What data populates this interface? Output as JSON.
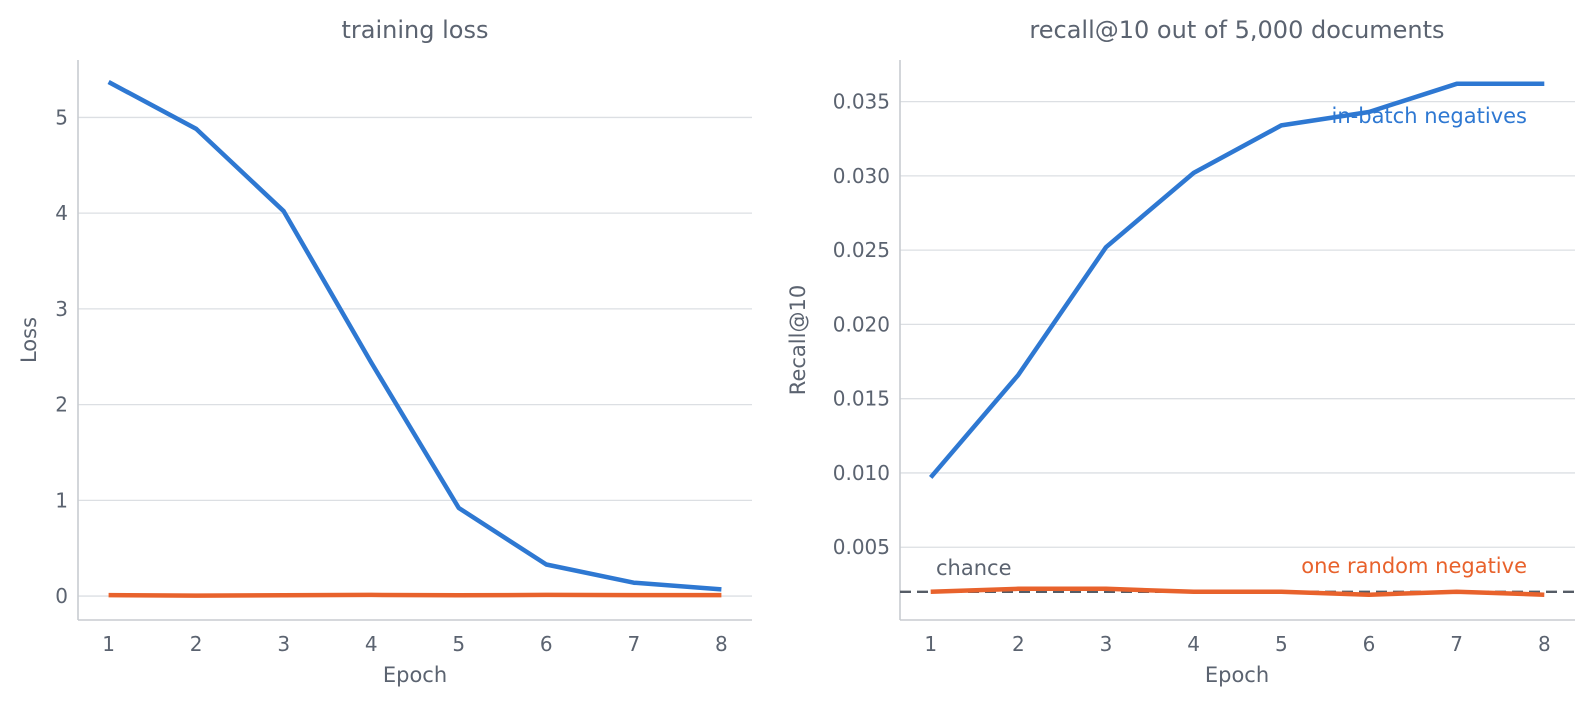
{
  "colors": {
    "series_a": "#2e78d2",
    "series_b": "#e8622c",
    "chance": "#555c66",
    "text": "#5b6370"
  },
  "chart_data": [
    {
      "type": "line",
      "title": "training loss",
      "xlabel": "Epoch",
      "ylabel": "Loss",
      "x": [
        1,
        2,
        3,
        4,
        5,
        6,
        7,
        8
      ],
      "xlim": [
        0.65,
        8.35
      ],
      "ylim": [
        -0.25,
        5.6
      ],
      "xticks": [
        "1",
        "2",
        "3",
        "4",
        "5",
        "6",
        "7",
        "8"
      ],
      "yticks": [
        "0",
        "1",
        "2",
        "3",
        "4",
        "5"
      ],
      "ytick_values": [
        0,
        1,
        2,
        3,
        4,
        5
      ],
      "grid": "horizontal",
      "series": [
        {
          "color": "#2e78d2",
          "values": [
            5.37,
            4.88,
            4.02,
            2.44,
            0.92,
            0.33,
            0.14,
            0.07
          ]
        },
        {
          "color": "#e8622c",
          "values": [
            0.01,
            0.005,
            0.008,
            0.012,
            0.008,
            0.012,
            0.01,
            0.01
          ]
        }
      ]
    },
    {
      "type": "line",
      "title": "recall@10 out of 5,000 documents",
      "xlabel": "Epoch",
      "ylabel": "Recall@10",
      "x": [
        1,
        2,
        3,
        4,
        5,
        6,
        7,
        8
      ],
      "xlim": [
        0.65,
        8.35
      ],
      "ylim": [
        0.0001,
        0.0378
      ],
      "xticks": [
        "1",
        "2",
        "3",
        "4",
        "5",
        "6",
        "7",
        "8"
      ],
      "yticks": [
        "0.005",
        "0.010",
        "0.015",
        "0.020",
        "0.025",
        "0.030",
        "0.035"
      ],
      "ytick_values": [
        0.005,
        0.01,
        0.015,
        0.02,
        0.025,
        0.03,
        0.035
      ],
      "grid": "horizontal",
      "chance_level": 0.002,
      "annotations": {
        "chance": "chance"
      },
      "series": [
        {
          "name": "in-batch negatives",
          "color": "#2e78d2",
          "values": [
            0.0097,
            0.0166,
            0.0252,
            0.0302,
            0.0334,
            0.0343,
            0.0362,
            0.0362
          ]
        },
        {
          "name": "one random negative",
          "color": "#e8622c",
          "values": [
            0.002,
            0.0022,
            0.0022,
            0.002,
            0.002,
            0.0018,
            0.002,
            0.0018
          ]
        }
      ]
    }
  ]
}
